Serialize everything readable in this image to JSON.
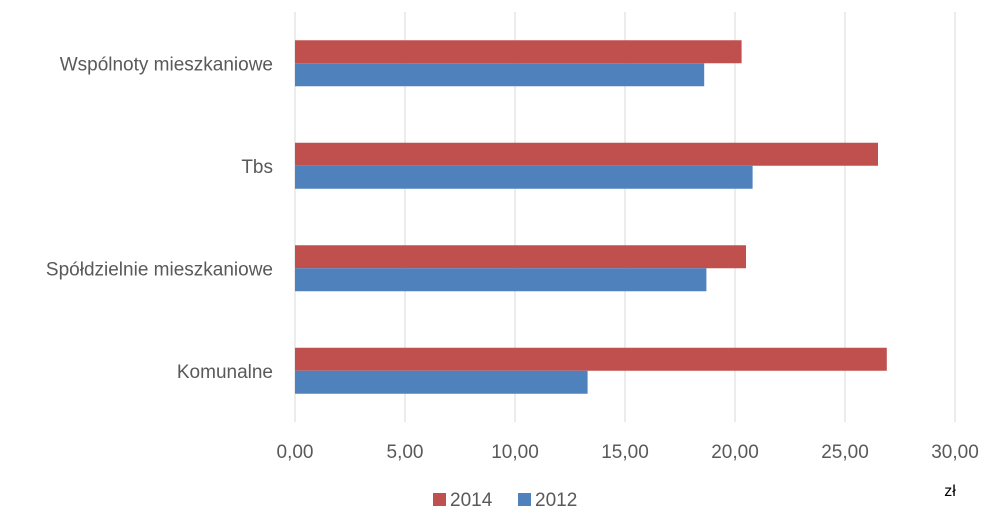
{
  "chart_data": {
    "type": "bar",
    "orientation": "horizontal",
    "categories": [
      "Wspólnoty mieszkaniowe",
      "Tbs",
      "Spółdzielnie mieszkaniowe",
      "Komunalne"
    ],
    "series": [
      {
        "name": "2014",
        "color": "#C0504D",
        "values": [
          20.3,
          26.5,
          20.5,
          26.9
        ]
      },
      {
        "name": "2012",
        "color": "#4F81BD",
        "values": [
          18.6,
          20.8,
          18.7,
          13.3
        ]
      }
    ],
    "xlim": [
      0,
      30
    ],
    "xticks": [
      0,
      5,
      10,
      15,
      20,
      25,
      30
    ],
    "xtick_labels": [
      "0,00",
      "5,00",
      "10,00",
      "15,00",
      "20,00",
      "25,00",
      "30,00"
    ],
    "xlabel": "zł",
    "grid": "vertical",
    "legend_position": "bottom"
  }
}
